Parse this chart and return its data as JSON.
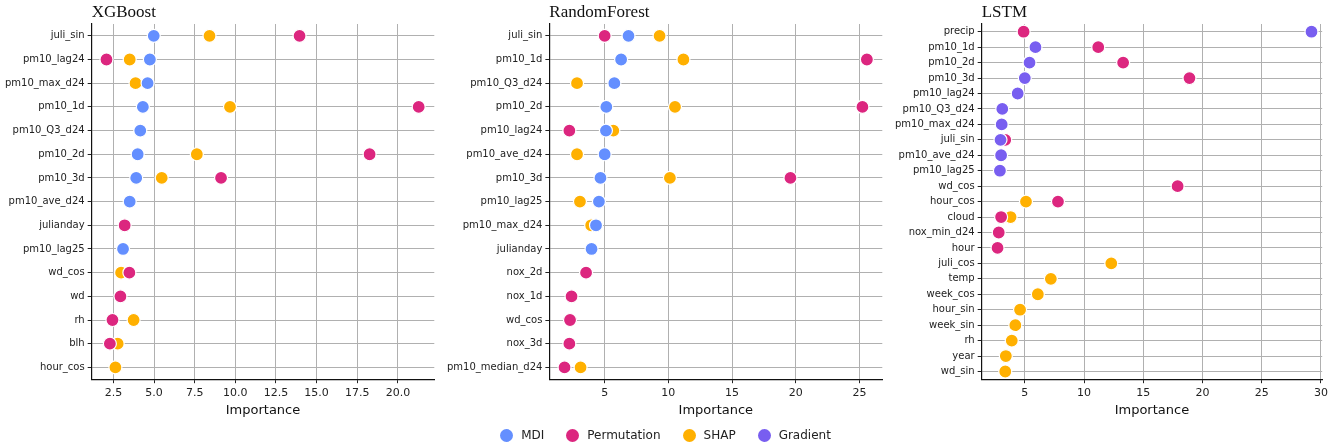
{
  "chart_data": [
    {
      "type": "scatter",
      "title": "XGBoost",
      "xlabel": "Importance",
      "orientation": "horizontal",
      "grid": true,
      "legend": "bottom",
      "marker": "circle",
      "categories": [
        "juli_sin",
        "pm10_lag24",
        "pm10_max_d24",
        "pm10_1d",
        "pm10_Q3_d24",
        "pm10_2d",
        "pm10_3d",
        "pm10_ave_d24",
        "julianday",
        "pm10_lag25",
        "wd_cos",
        "wd",
        "rh",
        "blh",
        "hour_cos"
      ],
      "xlim": [
        1.16,
        22.24
      ],
      "xticks": [
        {
          "value": 2.5,
          "label": "2.5"
        },
        {
          "value": 5,
          "label": "5.0"
        },
        {
          "value": 7.5,
          "label": "7.5"
        },
        {
          "value": 10,
          "label": "10.0"
        },
        {
          "value": 12.5,
          "label": "12.5"
        },
        {
          "value": 15,
          "label": "15.0"
        },
        {
          "value": 17.5,
          "label": "17.5"
        },
        {
          "value": 20,
          "label": "20.0"
        }
      ],
      "series": [
        {
          "name": "MDI",
          "color": "#648fff",
          "values": [
            4.98,
            4.74,
            4.6,
            4.31,
            4.15,
            3.99,
            3.9,
            3.5,
            null,
            3.09,
            null,
            null,
            null,
            null,
            null
          ]
        },
        {
          "name": "Permutation",
          "color": "#dc267f",
          "values": [
            13.95,
            2.07,
            null,
            21.28,
            null,
            18.26,
            9.12,
            null,
            3.19,
            null,
            3.48,
            2.93,
            2.44,
            2.28,
            null
          ]
        },
        {
          "name": "SHAP",
          "color": "#ffb000",
          "values": [
            8.41,
            3.5,
            3.86,
            9.67,
            null,
            7.63,
            5.47,
            null,
            null,
            null,
            2.97,
            null,
            3.74,
            2.76,
            2.62
          ]
        }
      ]
    },
    {
      "type": "scatter",
      "title": "RandomForest",
      "xlabel": "Importance",
      "orientation": "horizontal",
      "grid": true,
      "legend": "bottom",
      "marker": "circle",
      "categories": [
        "juli_sin",
        "pm10_1d",
        "pm10_Q3_d24",
        "pm10_2d",
        "pm10_lag24",
        "pm10_ave_d24",
        "pm10_3d",
        "pm10_lag25",
        "pm10_max_d24",
        "julianday",
        "nox_2d",
        "nox_1d",
        "wd_cos",
        "nox_3d",
        "pm10_median_d24"
      ],
      "xlim": [
        0.66,
        26.79
      ],
      "xticks": [
        5,
        10,
        15,
        20,
        25
      ],
      "series": [
        {
          "name": "MDI",
          "color": "#648fff",
          "values": [
            6.87,
            6.29,
            5.76,
            5.13,
            5.1,
            5.0,
            4.67,
            4.55,
            4.32,
            3.97,
            null,
            null,
            null,
            null,
            null
          ]
        },
        {
          "name": "Permutation",
          "color": "#dc267f",
          "values": [
            5.0,
            25.58,
            null,
            25.23,
            2.23,
            null,
            19.58,
            null,
            null,
            null,
            3.54,
            2.4,
            2.28,
            2.23,
            1.85
          ]
        },
        {
          "name": "SHAP",
          "color": "#ffb000",
          "values": [
            9.31,
            11.18,
            2.83,
            10.52,
            5.68,
            2.83,
            10.12,
            3.06,
            3.94,
            null,
            null,
            null,
            null,
            null,
            3.11
          ]
        }
      ]
    },
    {
      "type": "scatter",
      "title": "LSTM",
      "xlabel": "Importance",
      "orientation": "horizontal",
      "grid": true,
      "legend": "bottom",
      "marker": "circle",
      "categories": [
        "precip",
        "pm10_1d",
        "pm10_2d",
        "pm10_3d",
        "pm10_lag24",
        "pm10_Q3_d24",
        "pm10_max_d24",
        "juli_sin",
        "pm10_ave_d24",
        "pm10_lag25",
        "wd_cos",
        "hour_cos",
        "cloud",
        "nox_min_d24",
        "hour",
        "juli_cos",
        "temp",
        "week_cos",
        "hour_sin",
        "week_sin",
        "rh",
        "year",
        "wd_sin"
      ],
      "xlim": [
        1.36,
        30.1
      ],
      "xticks": [
        5,
        10,
        15,
        20,
        25,
        30
      ],
      "series": [
        {
          "name": "Gradient",
          "color": "#785ef0",
          "values": [
            29.2,
            5.9,
            5.4,
            5.0,
            4.4,
            3.1,
            3.05,
            2.95,
            3.0,
            2.9,
            null,
            null,
            null,
            null,
            null,
            null,
            null,
            null,
            null,
            null,
            null,
            null,
            null
          ]
        },
        {
          "name": "Permutation",
          "color": "#dc267f",
          "values": [
            4.9,
            11.2,
            13.3,
            18.9,
            null,
            null,
            null,
            3.35,
            null,
            null,
            17.9,
            7.8,
            3.0,
            2.8,
            2.7,
            null,
            null,
            null,
            null,
            null,
            null,
            null,
            null
          ]
        },
        {
          "name": "SHAP",
          "color": "#ffb000",
          "values": [
            null,
            null,
            null,
            null,
            null,
            null,
            null,
            null,
            null,
            null,
            null,
            5.1,
            3.8,
            null,
            null,
            12.3,
            7.2,
            6.1,
            4.6,
            4.2,
            3.9,
            3.4,
            3.35
          ]
        }
      ]
    }
  ]
}
